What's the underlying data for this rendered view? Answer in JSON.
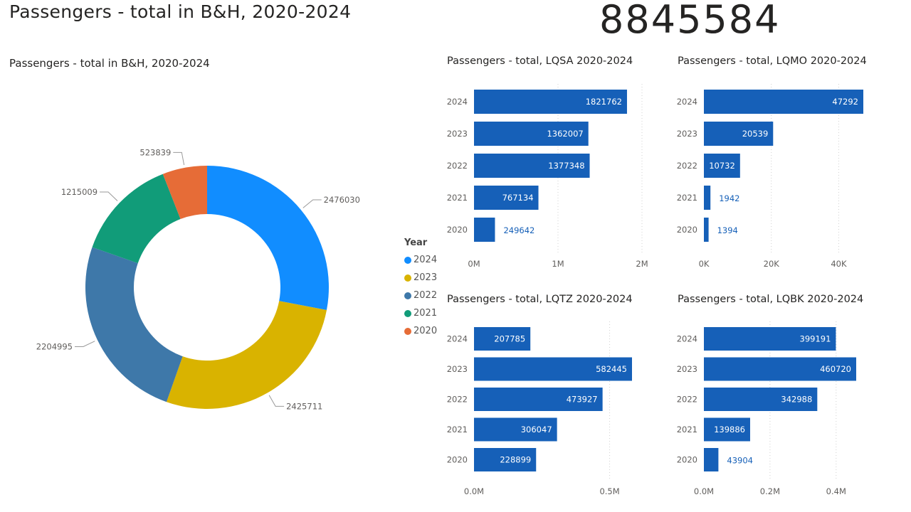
{
  "page_title": "Passengers - total in B&H, 2020-2024",
  "kpi": {
    "value": "8845584"
  },
  "legend": {
    "title": "Year",
    "items": [
      {
        "label": "2024",
        "color": "#118DFF"
      },
      {
        "label": "2023",
        "color": "#D9B300"
      },
      {
        "label": "2022",
        "color": "#3E78A9"
      },
      {
        "label": "2021",
        "color": "#119C79"
      },
      {
        "label": "2020",
        "color": "#E66C37"
      }
    ]
  },
  "chart_data": [
    {
      "type": "pie",
      "donut": true,
      "title": "Passengers - total in B&H, 2020-2024",
      "categories": [
        "2024",
        "2023",
        "2022",
        "2021",
        "2020"
      ],
      "values": [
        2476030,
        2425711,
        2204995,
        1215009,
        523839
      ],
      "colors": [
        "#118DFF",
        "#D9B300",
        "#3E78A9",
        "#119C79",
        "#E66C37"
      ]
    },
    {
      "type": "bar",
      "orientation": "horizontal",
      "title": "Passengers - total, LQSA 2020-2024",
      "categories": [
        "2024",
        "2023",
        "2022",
        "2021",
        "2020"
      ],
      "values": [
        1821762,
        1362007,
        1377348,
        767134,
        249642
      ],
      "value_labels": [
        "1821762",
        "1362007",
        "1377348",
        "767134",
        "249642"
      ],
      "xticks": [
        "0M",
        "1M",
        "2M"
      ],
      "xtick_values": [
        0,
        1000000,
        2000000
      ],
      "xlim": [
        0,
        2000000
      ],
      "color": "#1660B8",
      "grid": true
    },
    {
      "type": "bar",
      "orientation": "horizontal",
      "title": "Passengers - total, LQMO 2020-2024",
      "categories": [
        "2024",
        "2023",
        "2022",
        "2021",
        "2020"
      ],
      "values": [
        47292,
        20539,
        10732,
        1942,
        1394
      ],
      "value_labels": [
        "47292",
        "20539",
        "10732",
        "1942",
        "1394"
      ],
      "xticks": [
        "0K",
        "20K",
        "40K"
      ],
      "xtick_values": [
        0,
        20000,
        40000
      ],
      "xlim": [
        0,
        47292
      ],
      "color": "#1660B8",
      "grid": true
    },
    {
      "type": "bar",
      "orientation": "horizontal",
      "title": "Passengers - total, LQTZ 2020-2024",
      "categories": [
        "2024",
        "2023",
        "2022",
        "2021",
        "2020"
      ],
      "values": [
        207785,
        582445,
        473927,
        306047,
        228899
      ],
      "value_labels": [
        "207785",
        "582445",
        "473927",
        "306047",
        "228899"
      ],
      "xticks": [
        "0.0M",
        "0.5M"
      ],
      "xtick_values": [
        0,
        500000
      ],
      "xlim": [
        0,
        582445
      ],
      "color": "#1660B8",
      "grid": true
    },
    {
      "type": "bar",
      "orientation": "horizontal",
      "title": "Passengers - total, LQBK 2020-2024",
      "categories": [
        "2024",
        "2023",
        "2022",
        "2021",
        "2020"
      ],
      "values": [
        399191,
        460720,
        342988,
        139886,
        43904
      ],
      "value_labels": [
        "399191",
        "460720",
        "342988",
        "139886",
        "43904"
      ],
      "xticks": [
        "0.0M",
        "0.2M",
        "0.4M"
      ],
      "xtick_values": [
        0,
        200000,
        400000
      ],
      "xlim": [
        0,
        460720
      ],
      "color": "#1660B8",
      "grid": true
    }
  ]
}
